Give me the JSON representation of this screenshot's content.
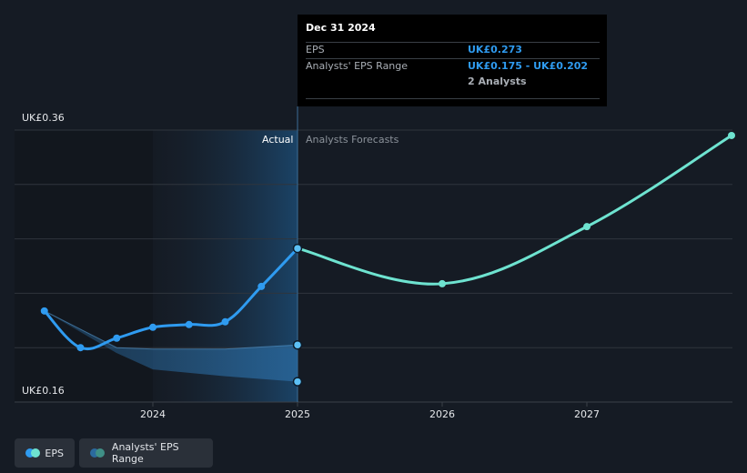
{
  "chart_data": {
    "type": "line",
    "y_axis": {
      "ylim": [
        0.16,
        0.36
      ],
      "label_top": "UK£0.36",
      "label_bottom": "UK£0.16"
    },
    "x_axis": {
      "ticks": [
        "2024",
        "2025",
        "2026",
        "2027"
      ],
      "tick_values": [
        2024.0,
        2025.0,
        2026.0,
        2027.0
      ],
      "xlim": [
        2023.2,
        2028.0
      ]
    },
    "region_labels": {
      "actual": "Actual",
      "forecast": "Analysts Forecasts"
    },
    "series": [
      {
        "name": "EPS",
        "color": "#2f9bf0",
        "x": [
          2023.25,
          2023.5,
          2023.75,
          2024.0,
          2024.25,
          2024.5,
          2024.75,
          2025.0
        ],
        "y": [
          0.227,
          0.2,
          0.207,
          0.215,
          0.217,
          0.219,
          0.245,
          0.273
        ]
      },
      {
        "name": "EPS Forecast",
        "color": "#6ee3d0",
        "x": [
          2025.0,
          2026.0,
          2027.0,
          2028.0
        ],
        "y": [
          0.273,
          0.247,
          0.289,
          0.356
        ]
      }
    ],
    "range": {
      "name": "Analysts' EPS Range",
      "x": [
        2023.25,
        2023.75,
        2024.0,
        2024.5,
        2025.0
      ],
      "upper": [
        0.227,
        0.2,
        0.199,
        0.199,
        0.202
      ],
      "lower": [
        0.227,
        0.196,
        0.184,
        0.179,
        0.175
      ]
    }
  },
  "tooltip": {
    "date": "Dec 31 2024",
    "rows": [
      {
        "label": "EPS",
        "value": "UK£0.273"
      },
      {
        "label": "Analysts' EPS Range",
        "value": "UK£0.175 - UK£0.202"
      },
      {
        "label": "",
        "value": "2 Analysts"
      }
    ]
  },
  "legend": [
    {
      "label": "EPS",
      "colors": [
        "#2f9bf0",
        "#6ee3d0"
      ]
    },
    {
      "label": "Analysts' EPS Range",
      "colors": [
        "#2b6a9e",
        "#3f8f86"
      ]
    }
  ]
}
